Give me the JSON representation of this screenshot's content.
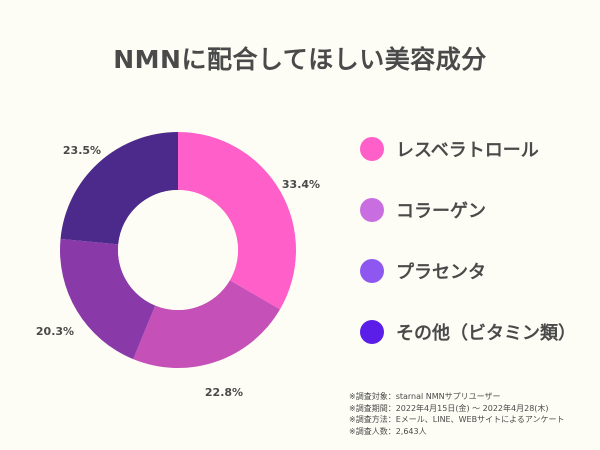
{
  "title": "NMNに配合してほしい美容成分",
  "chart_data": {
    "type": "pie",
    "donut": true,
    "categories": [
      "レスベラトロール",
      "コラーゲン",
      "プラセンタ",
      "その他（ビタミン類）"
    ],
    "values": [
      33.4,
      22.8,
      20.3,
      23.5
    ],
    "value_labels": [
      "33.4%",
      "22.8%",
      "20.3%",
      "23.5%"
    ],
    "colors": [
      "#ff5fc8",
      "#c450b8",
      "#8a3aa8",
      "#4b2a8c"
    ],
    "legend_placement": "right"
  },
  "legend": [
    {
      "label": "レスベラトロール",
      "color": "#ff5fc8"
    },
    {
      "label": "コラーゲン",
      "color": "#c86ee0"
    },
    {
      "label": "プラセンタ",
      "color": "#8e58f0"
    },
    {
      "label": "その他（ビタミン類）",
      "color": "#5b1ee8"
    }
  ],
  "notes": [
    "※調査対象：starnal NMNサプリユーザー",
    "※調査期間：2022年4月15日(金) 〜 2022年4月28(木)",
    "※調査方法：Eメール、LINE、WEBサイトによるアンケート",
    "※調査人数：2,643人"
  ]
}
